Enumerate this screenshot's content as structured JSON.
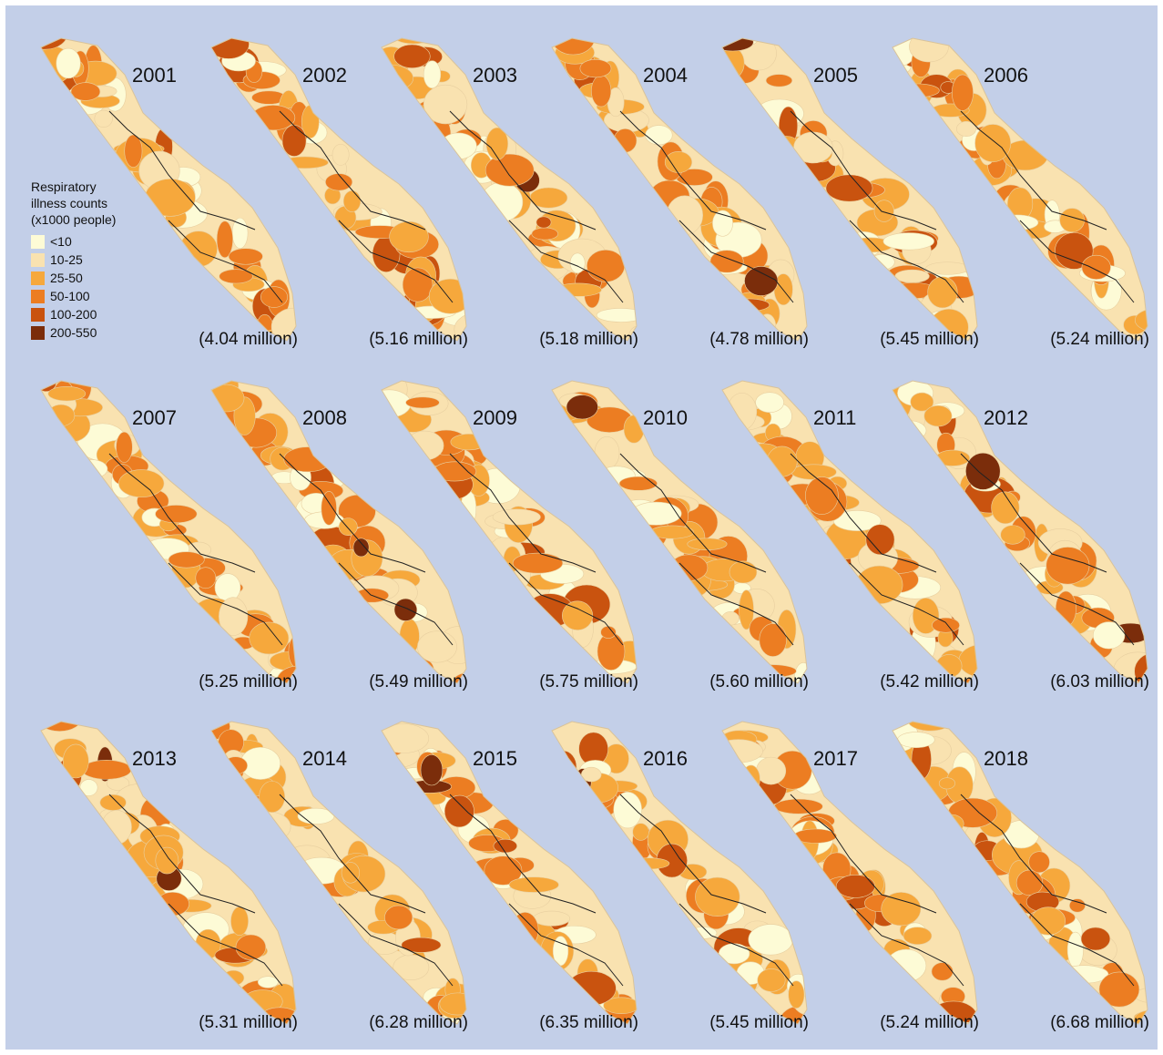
{
  "legend": {
    "title_lines": [
      "Respiratory",
      "illness counts",
      "(x1000 people)"
    ],
    "items": [
      {
        "label": "<10",
        "color": "#fdfbd6"
      },
      {
        "label": "10-25",
        "color": "#f9e2b0"
      },
      {
        "label": "25-50",
        "color": "#f6a83c"
      },
      {
        "label": "50-100",
        "color": "#ec7d22"
      },
      {
        "label": "100-200",
        "color": "#c9530f"
      },
      {
        "label": "200-550",
        "color": "#7b2d0b"
      }
    ]
  },
  "panels": [
    {
      "year": "2001",
      "total": "(4.04 million)"
    },
    {
      "year": "2002",
      "total": "(5.16 million)"
    },
    {
      "year": "2003",
      "total": "(5.18 million)"
    },
    {
      "year": "2004",
      "total": "(4.78 million)"
    },
    {
      "year": "2005",
      "total": "(5.45 million)"
    },
    {
      "year": "2006",
      "total": "(5.24 million)"
    },
    {
      "year": "2007",
      "total": "(5.25 million)"
    },
    {
      "year": "2008",
      "total": "(5.49 million)"
    },
    {
      "year": "2009",
      "total": "(5.75 million)"
    },
    {
      "year": "2010",
      "total": "(5.60 million)"
    },
    {
      "year": "2011",
      "total": "(5.42 million)"
    },
    {
      "year": "2012",
      "total": "(6.03 million)"
    },
    {
      "year": "2013",
      "total": "(5.31 million)"
    },
    {
      "year": "2014",
      "total": "(6.28 million)"
    },
    {
      "year": "2015",
      "total": "(6.35 million)"
    },
    {
      "year": "2016",
      "total": "(5.45 million)"
    },
    {
      "year": "2017",
      "total": "(5.24 million)"
    },
    {
      "year": "2018",
      "total": "(6.68 million)"
    }
  ]
}
